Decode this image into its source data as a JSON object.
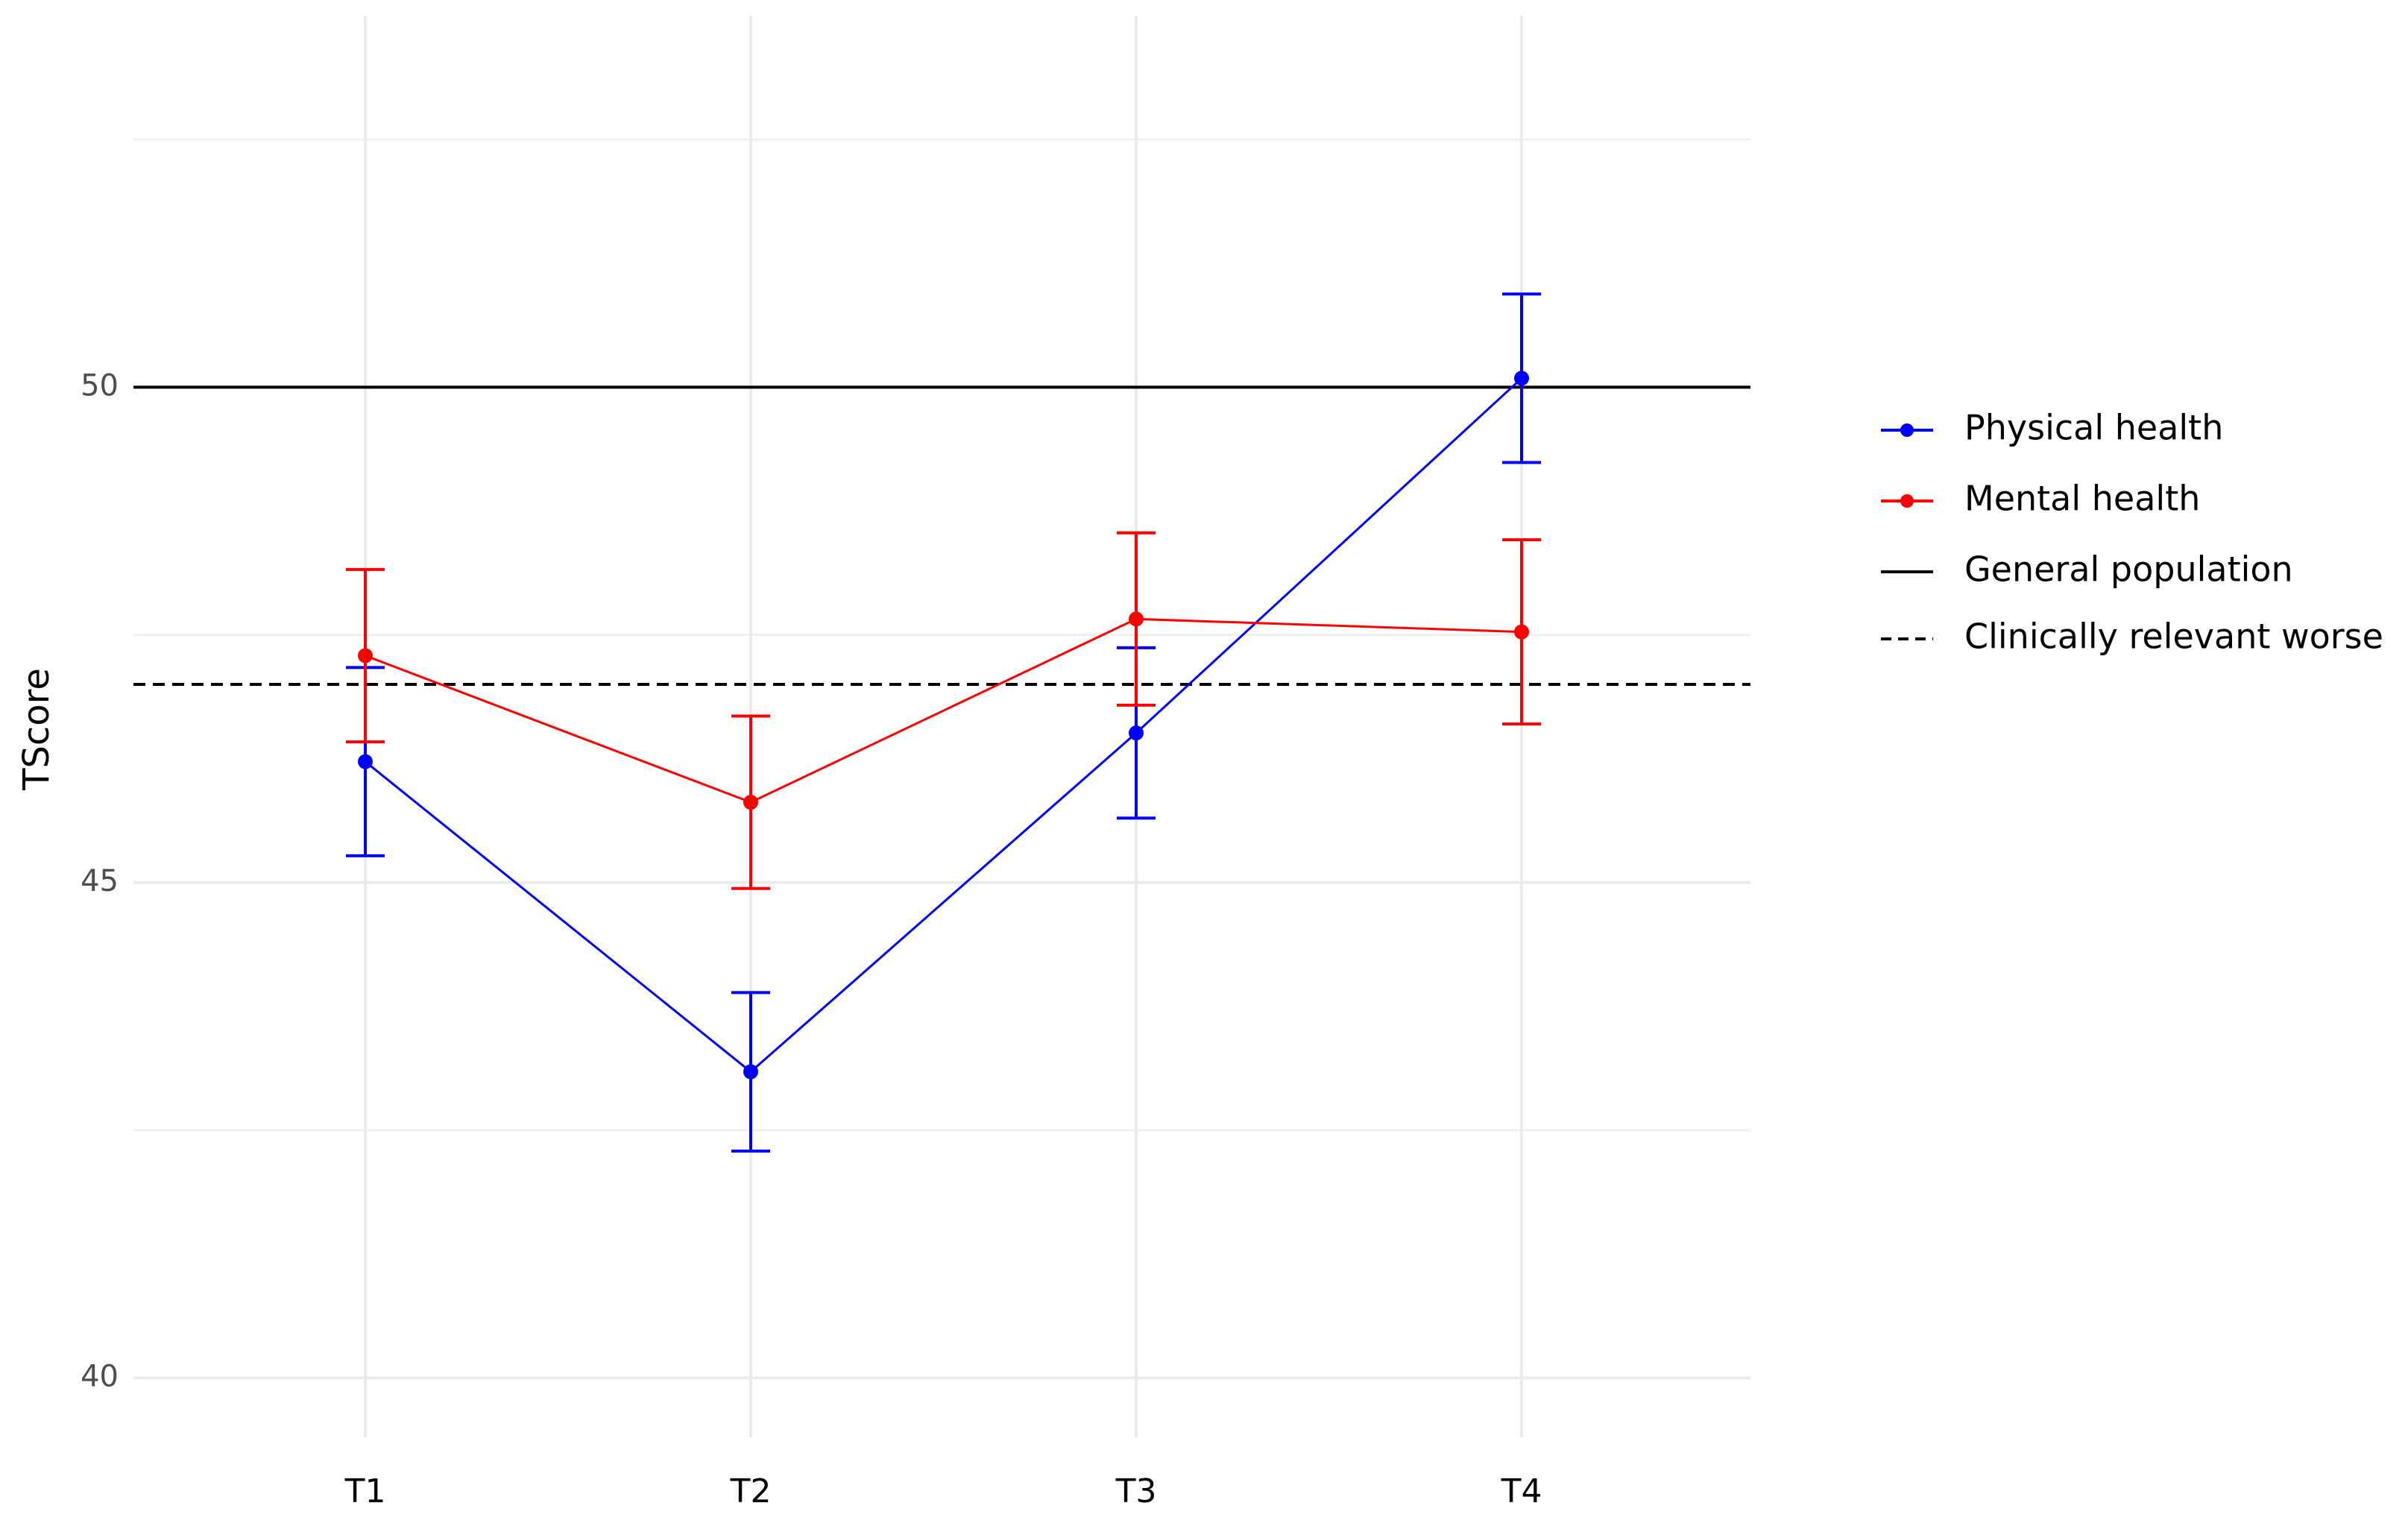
{
  "chart_data": {
    "type": "line",
    "ylabel": "TScore",
    "categories": [
      "T1",
      "T2",
      "T3",
      "T4"
    ],
    "series": [
      {
        "name": "Physical health",
        "color": "#0000ff",
        "values": [
          46.22,
          43.09,
          46.51,
          50.09
        ],
        "errors": [
          0.95,
          0.8,
          0.86,
          0.85
        ]
      },
      {
        "name": "Mental health",
        "color": "#ff0000",
        "values": [
          47.29,
          45.81,
          47.66,
          47.53
        ],
        "errors": [
          0.87,
          0.87,
          0.87,
          0.93
        ]
      }
    ],
    "reference_lines": [
      {
        "name": "General population",
        "value": 50,
        "style": "solid",
        "color": "#000000"
      },
      {
        "name": "Clinically relevant worse",
        "value": 47,
        "style": "dashed",
        "color": "#000000"
      }
    ],
    "ylim": [
      39.4,
      53.75
    ],
    "yticks": [
      40,
      45,
      50
    ],
    "yminorticks": [
      42.5,
      47.5,
      52.5
    ],
    "grid": true,
    "legend": "right"
  }
}
